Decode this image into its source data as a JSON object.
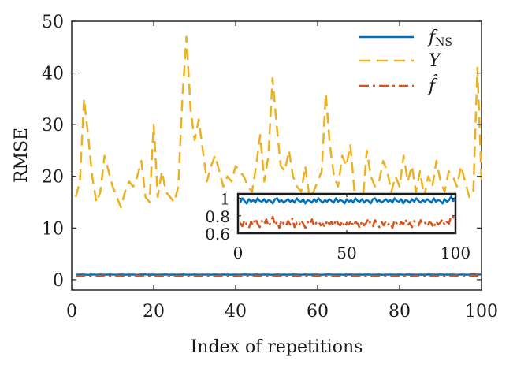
{
  "chart_data": [
    {
      "id": "main",
      "type": "line",
      "title": "",
      "xlabel": "Index of repetitions",
      "ylabel": "RMSE",
      "xlim": [
        0,
        100
      ],
      "ylim": [
        -2,
        50
      ],
      "xticks": [
        0,
        20,
        40,
        60,
        80,
        100
      ],
      "yticks": [
        0,
        10,
        20,
        30,
        40,
        50
      ],
      "grid": false,
      "legend_position": "top-right",
      "x": [
        1,
        2,
        3,
        4,
        5,
        6,
        7,
        8,
        9,
        10,
        11,
        12,
        13,
        14,
        15,
        16,
        17,
        18,
        19,
        20,
        21,
        22,
        23,
        24,
        25,
        26,
        27,
        28,
        29,
        30,
        31,
        32,
        33,
        34,
        35,
        36,
        37,
        38,
        39,
        40,
        41,
        42,
        43,
        44,
        45,
        46,
        47,
        48,
        49,
        50,
        51,
        52,
        53,
        54,
        55,
        56,
        57,
        58,
        59,
        60,
        61,
        62,
        63,
        64,
        65,
        66,
        67,
        68,
        69,
        70,
        71,
        72,
        73,
        74,
        75,
        76,
        77,
        78,
        79,
        80,
        81,
        82,
        83,
        84,
        85,
        86,
        87,
        88,
        89,
        90,
        91,
        92,
        93,
        94,
        95,
        96,
        97,
        98,
        99,
        100
      ],
      "series": [
        {
          "name": "f_NS",
          "legend_main": "f",
          "legend_sub": "NS",
          "color": "#0072BD",
          "style": "solid",
          "values": [
            0.95,
            1.0,
            0.97,
            0.94,
            0.99,
            0.96,
            0.98,
            0.95,
            1.0,
            0.97,
            0.96,
            0.99,
            0.95,
            0.98,
            0.97,
            0.94,
            0.99,
            1.0,
            0.96,
            0.98,
            0.95,
            0.97,
            0.99,
            0.96,
            0.98,
            0.95,
            1.0,
            0.97,
            0.96,
            0.99,
            0.94,
            0.98,
            0.97,
            0.95,
            0.99,
            0.96,
            1.0,
            0.97,
            0.95,
            0.98,
            0.96,
            0.99,
            0.97,
            0.95,
            1.0,
            0.96,
            0.98,
            0.97,
            0.94,
            0.99,
            0.96,
            0.98,
            0.95,
            1.0,
            0.97,
            0.96,
            0.99,
            0.95,
            0.98,
            0.97,
            0.94,
            0.99,
            1.0,
            0.96,
            0.98,
            0.95,
            0.97,
            0.99,
            0.96,
            0.98,
            0.95,
            1.0,
            0.97,
            0.96,
            0.99,
            0.94,
            0.98,
            0.97,
            0.95,
            0.99,
            0.96,
            1.0,
            0.97,
            0.95,
            0.98,
            0.96,
            0.99,
            0.97,
            0.95,
            1.0,
            0.96,
            0.98,
            0.97,
            0.94,
            0.99,
            0.96,
            0.98,
            1.02,
            0.97,
            0.99
          ]
        },
        {
          "name": "Y",
          "legend_main": "Y",
          "legend_sub": "",
          "color": "#EDB120",
          "style": "dashed",
          "values": [
            16,
            19,
            35,
            28,
            20,
            15,
            17,
            24,
            21,
            18,
            16,
            14,
            17,
            19,
            18,
            20,
            23,
            16,
            15,
            30,
            16,
            21,
            17,
            16,
            15,
            18,
            35,
            47,
            33,
            27,
            31,
            25,
            19,
            22,
            24,
            21,
            18,
            20,
            19,
            22,
            21,
            20,
            18,
            17,
            22,
            28,
            19,
            24,
            39,
            30,
            22,
            21,
            25,
            20,
            18,
            17,
            22,
            16,
            17,
            19,
            21,
            36,
            26,
            20,
            18,
            24,
            22,
            26,
            17,
            16,
            15,
            25,
            20,
            18,
            19,
            23,
            21,
            17,
            20,
            18,
            24,
            19,
            22,
            17,
            21,
            16,
            20,
            18,
            23,
            19,
            17,
            21,
            20,
            18,
            22,
            19,
            16,
            17,
            41,
            19
          ]
        },
        {
          "name": "f_hat",
          "legend_main": "f̂",
          "legend_sub": "",
          "color": "#D95319",
          "style": "dashdot",
          "values": [
            0.72,
            0.68,
            0.75,
            0.7,
            0.66,
            0.73,
            0.69,
            0.77,
            0.71,
            0.67,
            0.74,
            0.7,
            0.76,
            0.68,
            0.72,
            0.79,
            0.69,
            0.73,
            0.66,
            0.75,
            0.71,
            0.68,
            0.74,
            0.7,
            0.77,
            0.67,
            0.72,
            0.69,
            0.75,
            0.71,
            0.66,
            0.73,
            0.7,
            0.76,
            0.68,
            0.72,
            0.74,
            0.69,
            0.71,
            0.67,
            0.75,
            0.7,
            0.73,
            0.68,
            0.76,
            0.71,
            0.69,
            0.74,
            0.67,
            0.72,
            0.7,
            0.75,
            0.68,
            0.73,
            0.71,
            0.66,
            0.74,
            0.69,
            0.72,
            0.77,
            0.7,
            0.68,
            0.75,
            0.71,
            0.67,
            0.73,
            0.69,
            0.74,
            0.7,
            0.72,
            0.66,
            0.75,
            0.71,
            0.68,
            0.73,
            0.7,
            0.76,
            0.69,
            0.72,
            0.67,
            0.74,
            0.71,
            0.69,
            0.75,
            0.7,
            0.72,
            0.68,
            0.73,
            0.71,
            0.66,
            0.74,
            0.7,
            0.72,
            0.76,
            0.69,
            0.73,
            0.71,
            0.8,
            0.78,
            0.75
          ]
        }
      ]
    },
    {
      "id": "inset",
      "type": "line",
      "xlim": [
        0,
        100
      ],
      "ylim": [
        0.6,
        1.05
      ],
      "xticks": [
        0,
        50,
        100
      ],
      "yticks": [
        0.6,
        0.8,
        1
      ],
      "ytick_labels": [
        "0.6",
        "0.8",
        "1"
      ],
      "series_refs": [
        "f_NS",
        "f_hat"
      ]
    }
  ]
}
